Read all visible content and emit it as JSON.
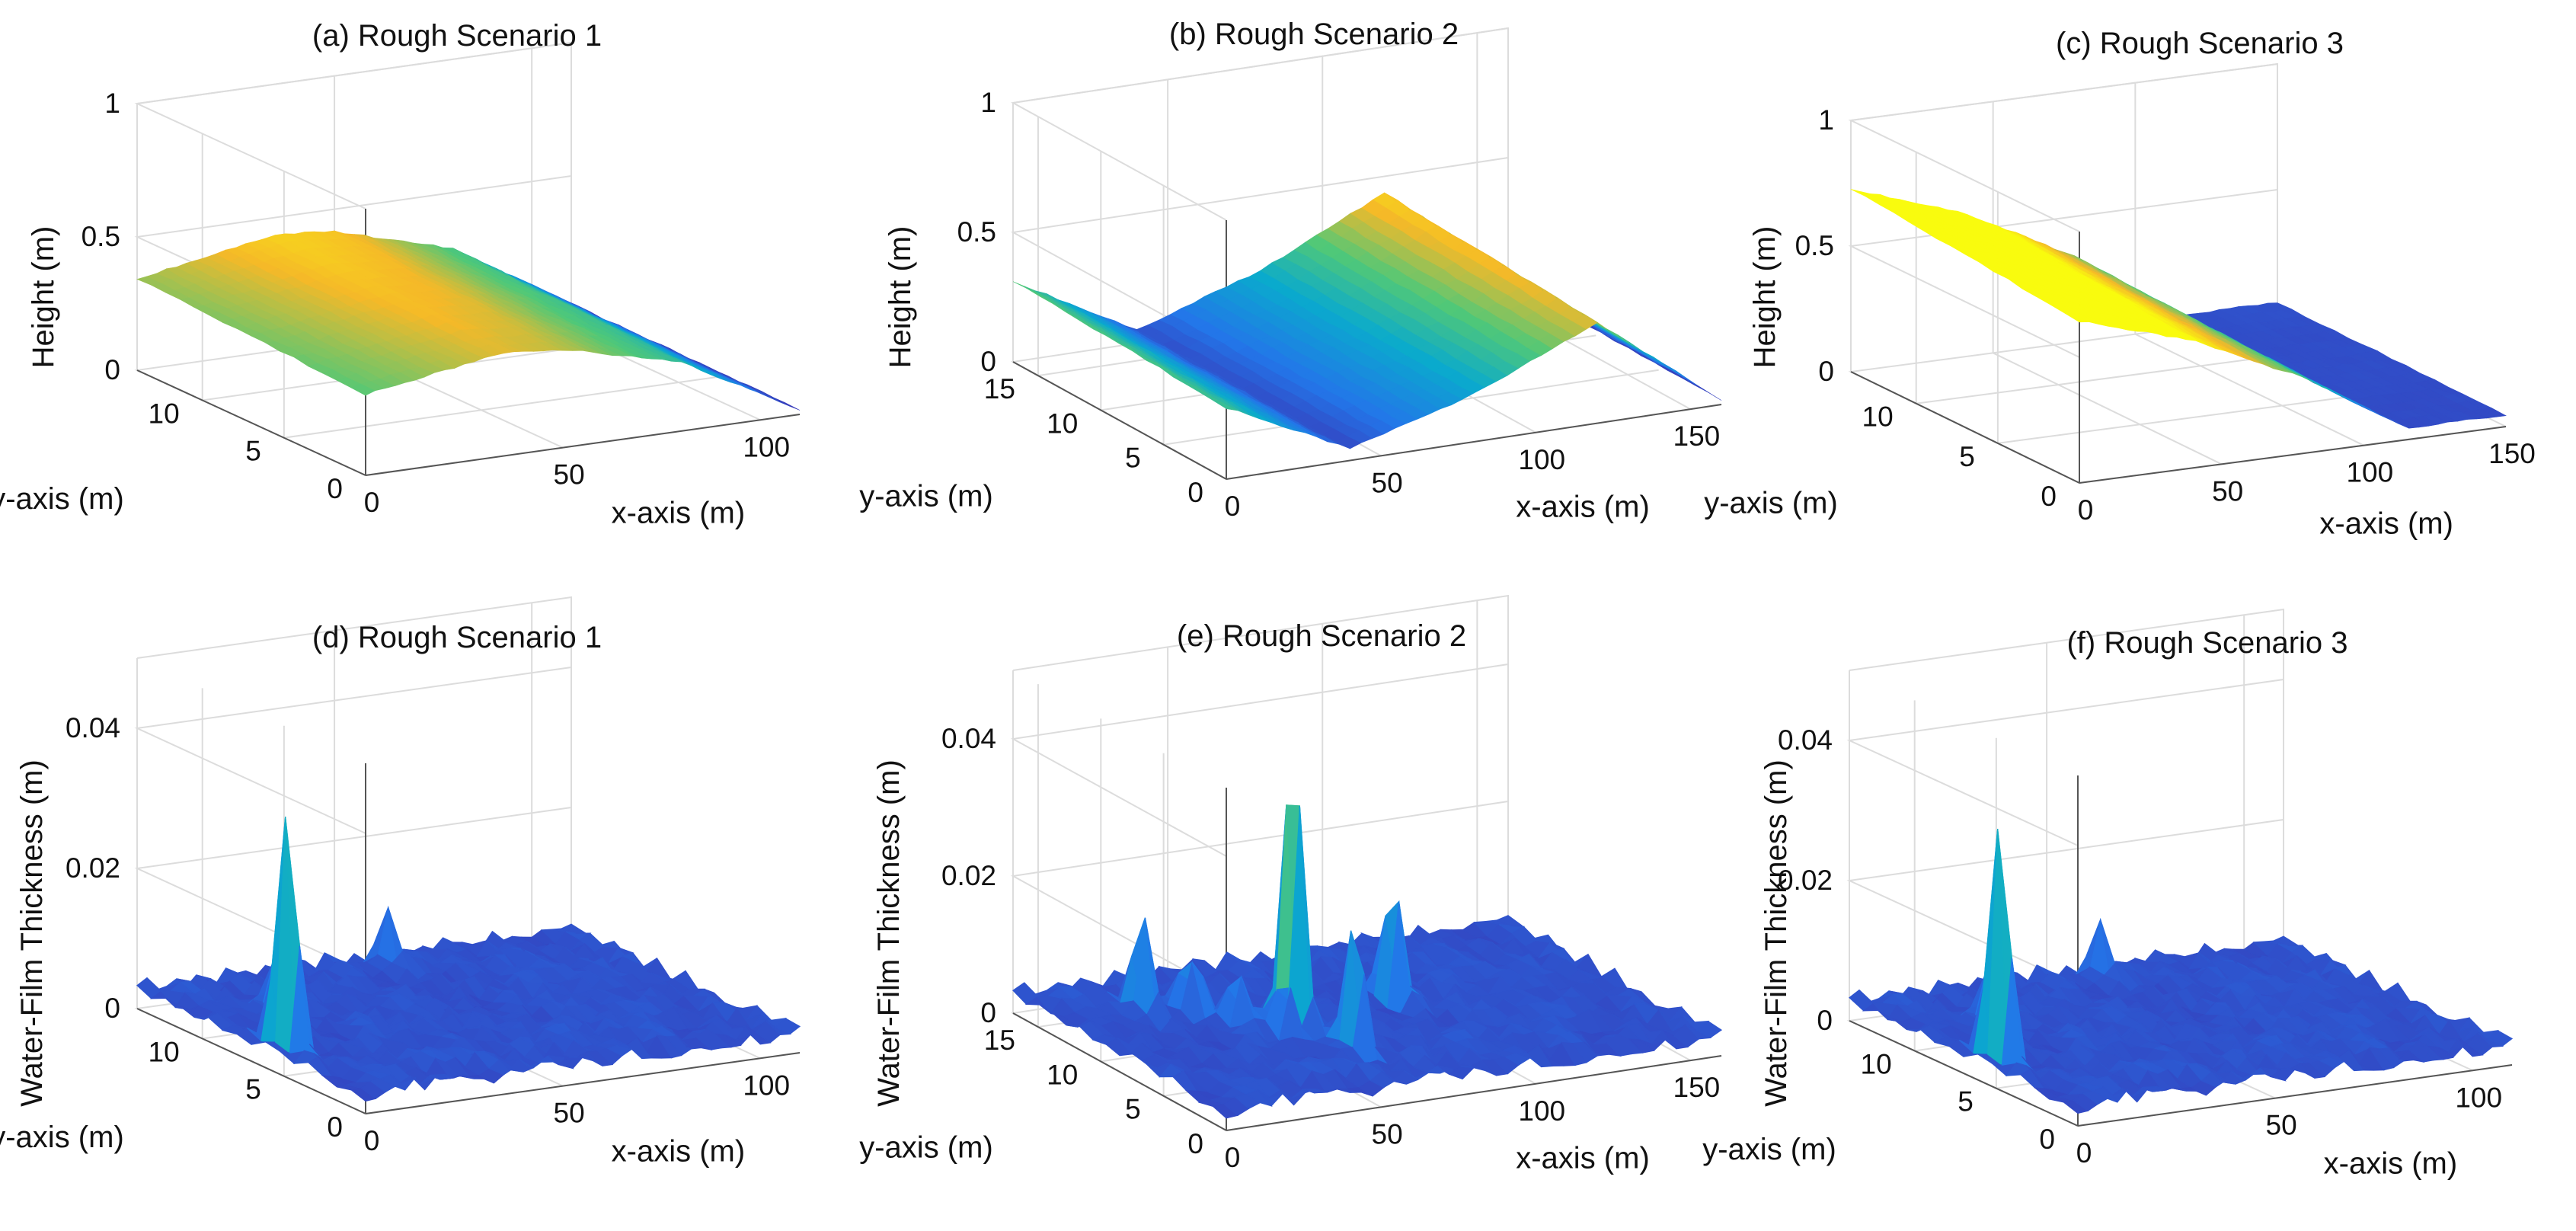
{
  "chart_data": [
    {
      "type": "surface",
      "id": "a",
      "title": "(a) Rough Scenario 1",
      "xlabel": "x-axis (m)",
      "ylabel": "y-axis (m)",
      "zlabel": "Height (m)",
      "xlim": [
        0,
        110
      ],
      "ylim": [
        0,
        14
      ],
      "zlim": [
        0,
        1
      ],
      "xticks": [
        "0",
        "50",
        "100"
      ],
      "yticks": [
        "0",
        "5",
        "10"
      ],
      "zticks": [
        "0",
        "0.5",
        "1"
      ],
      "grid": true,
      "colormap": "parula",
      "surface_profile": {
        "along_x_height": [
          [
            0,
            0.33
          ],
          [
            35,
            0.42
          ],
          [
            50,
            0.4
          ],
          [
            80,
            0.28
          ],
          [
            110,
            0.02
          ]
        ],
        "note": "smooth dome peaking near x 30-40 m, higher toward back (y large)"
      }
    },
    {
      "type": "surface",
      "id": "b",
      "title": "(b) Rough Scenario 2",
      "xlabel": "x-axis (m)",
      "ylabel": "y-axis (m)",
      "zlabel": "Height (m)",
      "xlim": [
        0,
        160
      ],
      "ylim": [
        0,
        17
      ],
      "zlim": [
        0,
        1
      ],
      "xticks": [
        "0",
        "50",
        "100",
        "150"
      ],
      "yticks": [
        "0",
        "5",
        "10",
        "15"
      ],
      "zticks": [
        "0",
        "0.5",
        "1"
      ],
      "grid": true,
      "colormap": "parula",
      "surface_profile": {
        "along_x_height": [
          [
            0,
            0.3
          ],
          [
            40,
            0.05
          ],
          [
            80,
            0.2
          ],
          [
            120,
            0.42
          ],
          [
            160,
            0.02
          ]
        ],
        "note": "valley in middle, ridge near x 110-130 m"
      }
    },
    {
      "type": "surface",
      "id": "c",
      "title": "(c) Rough Scenario 3",
      "xlabel": "x-axis (m)",
      "ylabel": "y-axis (m)",
      "zlabel": "Height (m)",
      "xlim": [
        0,
        150
      ],
      "ylim": [
        0,
        14
      ],
      "zlim": [
        0,
        1
      ],
      "xticks": [
        "0",
        "50",
        "100",
        "150"
      ],
      "yticks": [
        "0",
        "5",
        "10"
      ],
      "zticks": [
        "0",
        "0.5",
        "1"
      ],
      "grid": true,
      "colormap": "parula",
      "surface_profile": {
        "along_x_height": [
          [
            0,
            0.7
          ],
          [
            40,
            0.55
          ],
          [
            80,
            0.32
          ],
          [
            115,
            0.05
          ]
        ],
        "note": "narrow strip descending monotonically with x"
      }
    },
    {
      "type": "surface",
      "id": "d",
      "title": "(d) Rough Scenario 1",
      "xlabel": "x-axis (m)",
      "ylabel": "y-axis (m)",
      "zlabel": "Water-Film Thickness (m)",
      "xlim": [
        0,
        110
      ],
      "ylim": [
        0,
        14
      ],
      "zlim": [
        0,
        0.05
      ],
      "xticks": [
        "0",
        "50",
        "100"
      ],
      "yticks": [
        "0",
        "5",
        "10"
      ],
      "zticks": [
        "0",
        "0.02",
        "0.04"
      ],
      "grid": true,
      "colormap": "parula",
      "peaks": [
        {
          "x": 5,
          "y": 6,
          "z": 0.036
        },
        {
          "x": 20,
          "y": 10,
          "z": 0.012
        },
        {
          "x": 60,
          "y": 13,
          "z": 0.01
        }
      ],
      "baseline_thickness": 0.003
    },
    {
      "type": "surface",
      "id": "e",
      "title": "(e) Rough Scenario 2",
      "xlabel": "x-axis (m)",
      "ylabel": "y-axis (m)",
      "zlabel": "Water-Film Thickness (m)",
      "xlim": [
        0,
        160
      ],
      "ylim": [
        0,
        17
      ],
      "zlim": [
        0,
        0.05
      ],
      "xticks": [
        "0",
        "50",
        "100",
        "150"
      ],
      "yticks": [
        "0",
        "5",
        "10",
        "15"
      ],
      "zticks": [
        "0",
        "0.02",
        "0.04"
      ],
      "grid": true,
      "colormap": "parula",
      "peaks": [
        {
          "x": 25,
          "y": 13,
          "z": 0.018
        },
        {
          "x": 38,
          "y": 12,
          "z": 0.017
        },
        {
          "x": 45,
          "y": 10,
          "z": 0.015
        },
        {
          "x": 52,
          "y": 8,
          "z": 0.014
        },
        {
          "x": 58,
          "y": 9,
          "z": 0.045
        },
        {
          "x": 62,
          "y": 5,
          "z": 0.022
        },
        {
          "x": 95,
          "y": 10,
          "z": 0.022
        }
      ],
      "baseline_thickness": 0.003
    },
    {
      "type": "surface",
      "id": "f",
      "title": "(f) Rough Scenario 3",
      "xlabel": "x-axis (m)",
      "ylabel": "y-axis (m)",
      "zlabel": "Water-Film Thickness (m)",
      "xlim": [
        0,
        110
      ],
      "ylim": [
        0,
        14
      ],
      "zlim": [
        0,
        0.05
      ],
      "xticks": [
        "0",
        "50",
        "100"
      ],
      "yticks": [
        "0",
        "5",
        "10"
      ],
      "zticks": [
        "0",
        "0.02",
        "0.04"
      ],
      "grid": true,
      "colormap": "parula",
      "peaks": [
        {
          "x": 5,
          "y": 6,
          "z": 0.036
        },
        {
          "x": 20,
          "y": 10,
          "z": 0.012
        },
        {
          "x": 60,
          "y": 13,
          "z": 0.01
        }
      ],
      "baseline_thickness": 0.003
    }
  ]
}
